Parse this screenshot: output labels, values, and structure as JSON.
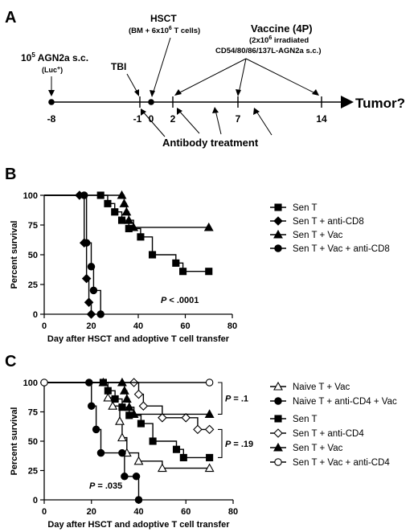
{
  "panel_a": {
    "letter": "A",
    "tumor_label": "Tumor?",
    "agn2a_main": "10",
    "agn2a_sup": "5",
    "agn2a_rest": " AGN2a s.c.",
    "agn2a_sub": "(Luc",
    "agn2a_sub_sup": "+",
    "agn2a_sub_end": ")",
    "tbi": "TBI",
    "hsct_title": "HSCT",
    "hsct_detail_a": "(BM + 6x10",
    "hsct_detail_sup": "6",
    "hsct_detail_b": " T cells)",
    "vaccine_title": "Vaccine (4P)",
    "vaccine_line1_a": "(2x10",
    "vaccine_line1_sup": "6",
    "vaccine_line1_b": " irradiated",
    "vaccine_line2": "CD54/80/86/137L-AGN2a s.c.)",
    "antibody": "Antibody treatment",
    "days": [
      "-8",
      "-1",
      "0",
      "2",
      "7",
      "14"
    ]
  },
  "chart_data": [
    {
      "panel": "B",
      "type": "line",
      "xlabel": "Day after HSCT and adoptive T cell transfer",
      "ylabel": "Percent survival",
      "xlim": [
        0,
        80
      ],
      "ylim": [
        0,
        100
      ],
      "xticks": [
        "0",
        "20",
        "40",
        "60",
        "80"
      ],
      "yticks": [
        "0",
        "25",
        "50",
        "75",
        "100"
      ],
      "annotation_p": "P",
      "annotation_val": " < .0001",
      "series": [
        {
          "name": "Sen T",
          "marker": "square",
          "points": [
            [
              0,
              100
            ],
            [
              24,
              100
            ],
            [
              27,
              93
            ],
            [
              30,
              86
            ],
            [
              33,
              79
            ],
            [
              36,
              72
            ],
            [
              41,
              65
            ],
            [
              46,
              50
            ],
            [
              56,
              43
            ],
            [
              59,
              36
            ],
            [
              70,
              36
            ]
          ]
        },
        {
          "name": "Sen T + anti-CD8",
          "marker": "diamond",
          "points": [
            [
              0,
              100
            ],
            [
              15,
              100
            ],
            [
              17,
              60
            ],
            [
              18,
              30
            ],
            [
              19,
              10
            ],
            [
              20,
              0
            ]
          ]
        },
        {
          "name": "Sen T + Vac",
          "marker": "triangle",
          "points": [
            [
              0,
              100
            ],
            [
              33,
              100
            ],
            [
              34,
              93
            ],
            [
              35,
              86
            ],
            [
              36,
              79
            ],
            [
              38,
              73
            ],
            [
              70,
              73
            ]
          ]
        },
        {
          "name": "Sen T + Vac + anti-CD8",
          "marker": "circle",
          "points": [
            [
              0,
              100
            ],
            [
              17,
              100
            ],
            [
              18,
              60
            ],
            [
              20,
              40
            ],
            [
              21,
              20
            ],
            [
              24,
              0
            ]
          ]
        }
      ]
    },
    {
      "panel": "C",
      "type": "line",
      "xlabel": "Day after HSCT and adoptive T cell transfer",
      "ylabel": "Percent survival",
      "xlim": [
        0,
        80
      ],
      "ylim": [
        0,
        100
      ],
      "xticks": [
        "0",
        "20",
        "40",
        "60",
        "80"
      ],
      "yticks": [
        "0",
        "25",
        "50",
        "75",
        "100"
      ],
      "annotation_p": "P",
      "annotation_val": " = .035",
      "brackets": [
        {
          "p": "P",
          "val": " = .1",
          "y_top": 100,
          "y_bottom": 73
        },
        {
          "p": "P",
          "val": " = .19",
          "y_top": 60,
          "y_bottom": 36
        }
      ],
      "series": [
        {
          "name": "Naive T + Vac",
          "marker": "triangle-open",
          "points": [
            [
              0,
              100
            ],
            [
              25,
              100
            ],
            [
              27,
              87
            ],
            [
              29,
              80
            ],
            [
              32,
              67
            ],
            [
              33,
              53
            ],
            [
              35,
              40
            ],
            [
              40,
              33
            ],
            [
              50,
              27
            ],
            [
              70,
              27
            ]
          ]
        },
        {
          "name": "Naive T + anti-CD4 + Vac",
          "marker": "circle",
          "points": [
            [
              0,
              100
            ],
            [
              19,
              100
            ],
            [
              20,
              80
            ],
            [
              22,
              60
            ],
            [
              24,
              40
            ],
            [
              33,
              40
            ],
            [
              34,
              20
            ],
            [
              39,
              20
            ],
            [
              40,
              0
            ]
          ]
        },
        {
          "name": "Sen T",
          "marker": "square",
          "points": [
            [
              0,
              100
            ],
            [
              25,
              100
            ],
            [
              27,
              93
            ],
            [
              30,
              86
            ],
            [
              33,
              79
            ],
            [
              36,
              72
            ],
            [
              41,
              65
            ],
            [
              46,
              50
            ],
            [
              56,
              43
            ],
            [
              59,
              36
            ],
            [
              70,
              36
            ]
          ]
        },
        {
          "name": "Sen T + anti-CD4",
          "marker": "diamond-open",
          "points": [
            [
              0,
              100
            ],
            [
              38,
              100
            ],
            [
              40,
              90
            ],
            [
              42,
              80
            ],
            [
              50,
              70
            ],
            [
              60,
              70
            ],
            [
              65,
              60
            ],
            [
              70,
              60
            ]
          ]
        },
        {
          "name": "Sen T + Vac",
          "marker": "triangle",
          "points": [
            [
              0,
              100
            ],
            [
              33,
              100
            ],
            [
              34,
              93
            ],
            [
              35,
              86
            ],
            [
              36,
              79
            ],
            [
              38,
              73
            ],
            [
              70,
              73
            ]
          ]
        },
        {
          "name": "Sen T + Vac + anti-CD4",
          "marker": "circle-open",
          "points": [
            [
              0,
              100
            ],
            [
              70,
              100
            ]
          ]
        }
      ]
    }
  ]
}
